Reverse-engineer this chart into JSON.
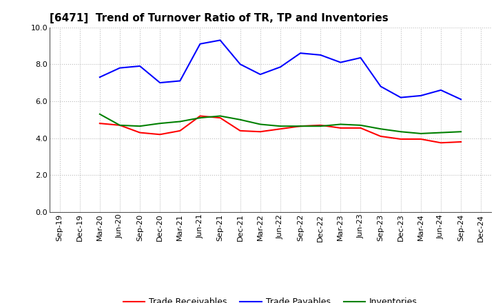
{
  "title": "[6471]  Trend of Turnover Ratio of TR, TP and Inventories",
  "x_labels": [
    "Sep-19",
    "Dec-19",
    "Mar-20",
    "Jun-20",
    "Sep-20",
    "Dec-20",
    "Mar-21",
    "Jun-21",
    "Sep-21",
    "Dec-21",
    "Mar-22",
    "Jun-22",
    "Sep-22",
    "Dec-22",
    "Mar-23",
    "Jun-23",
    "Sep-23",
    "Dec-23",
    "Mar-24",
    "Jun-24",
    "Sep-24",
    "Dec-24"
  ],
  "trade_receivables": [
    null,
    null,
    4.8,
    4.7,
    4.3,
    4.2,
    4.4,
    5.2,
    5.1,
    4.4,
    4.35,
    4.5,
    4.65,
    4.7,
    4.55,
    4.55,
    4.1,
    3.95,
    3.95,
    3.75,
    3.8,
    null
  ],
  "trade_payables": [
    null,
    null,
    7.3,
    7.8,
    7.9,
    7.0,
    7.1,
    9.1,
    9.3,
    8.0,
    7.45,
    7.85,
    8.6,
    8.5,
    8.1,
    8.35,
    6.8,
    6.2,
    6.3,
    6.6,
    6.1,
    null
  ],
  "inventories": [
    null,
    null,
    5.3,
    4.7,
    4.65,
    4.8,
    4.9,
    5.1,
    5.2,
    5.0,
    4.75,
    4.65,
    4.65,
    4.65,
    4.75,
    4.7,
    4.5,
    4.35,
    4.25,
    4.3,
    4.35,
    null
  ],
  "ylim": [
    0,
    10.0
  ],
  "yticks": [
    0.0,
    2.0,
    4.0,
    6.0,
    8.0,
    10.0
  ],
  "line_color_tr": "#ff0000",
  "line_color_tp": "#0000ff",
  "line_color_inv": "#008000",
  "legend_labels": [
    "Trade Receivables",
    "Trade Payables",
    "Inventories"
  ],
  "background_color": "#ffffff",
  "grid_color": "#bbbbbb",
  "title_fontsize": 11,
  "axis_fontsize": 8,
  "legend_fontsize": 9
}
